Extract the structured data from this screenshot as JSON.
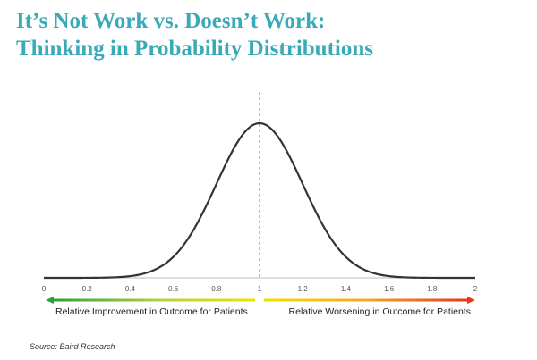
{
  "slide": {
    "title_line1": "It’s Not Work vs. Doesn’t Work:",
    "title_line2": "Thinking in Probability Distributions",
    "source": "Source: Baird Research"
  },
  "colors": {
    "title": "#3aaab8",
    "curve": "#333333",
    "reference_line": "#777777",
    "improvement_arrow": [
      "#2e9e3a",
      "#b8d23c",
      "#f2e000"
    ],
    "worsening_arrow": [
      "#f2e000",
      "#f5a623",
      "#e8331c"
    ]
  },
  "chart_data": {
    "type": "line",
    "curve": "normal-distribution",
    "mean": 1,
    "sd": 0.2,
    "xlim": [
      0,
      2
    ],
    "x_ticks": [
      "0",
      "0.2",
      "0.4",
      "0.6",
      "0.8",
      "1",
      "1.2",
      "1.4",
      "1.6",
      "1.8",
      "2"
    ],
    "reference_line_x": 1,
    "improvement_label": "Relative Improvement in Outcome for Patients",
    "worsening_label": "Relative Worsening in Outcome for Patients",
    "grid": false,
    "legend": "none"
  }
}
